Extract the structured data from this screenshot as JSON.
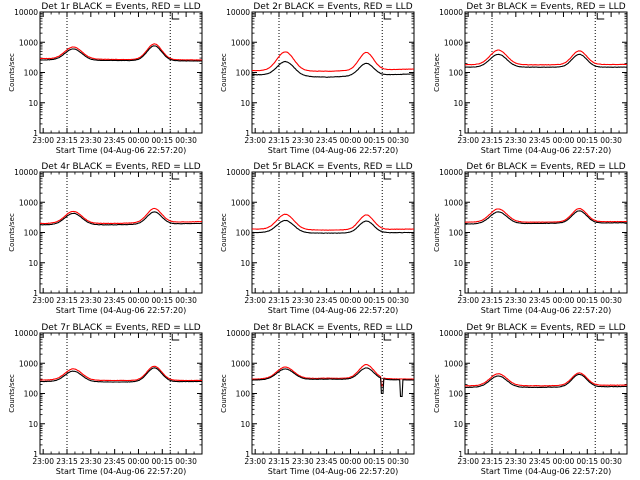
{
  "chart_data": [
    {
      "type": "line",
      "title": "Det 1r BLACK = Events, RED = LLD",
      "series": [
        {
          "name": "BLACK = Events",
          "color": "#000000",
          "peaks": [
            600,
            760
          ],
          "base": [
            260,
            250,
            240
          ]
        },
        {
          "name": "RED = LLD",
          "color": "#ff0000",
          "peaks": [
            700,
            880
          ],
          "base": [
            290,
            270,
            260
          ]
        }
      ],
      "glitch": null
    },
    {
      "type": "line",
      "title": "Det 2r BLACK = Events, RED = LLD",
      "series": [
        {
          "name": "BLACK = Events",
          "color": "#000000",
          "peaks": [
            230,
            200
          ],
          "base": [
            85,
            70,
            90
          ]
        },
        {
          "name": "RED = LLD",
          "color": "#ff0000",
          "peaks": [
            480,
            460
          ],
          "base": [
            115,
            110,
            130
          ]
        }
      ],
      "glitch": null
    },
    {
      "type": "line",
      "title": "Det 3r BLACK = Events, RED = LLD",
      "series": [
        {
          "name": "BLACK = Events",
          "color": "#000000",
          "peaks": [
            400,
            400
          ],
          "base": [
            150,
            150,
            150
          ]
        },
        {
          "name": "RED = LLD",
          "color": "#ff0000",
          "peaks": [
            550,
            520
          ],
          "base": [
            180,
            180,
            185
          ]
        }
      ],
      "glitch": null
    },
    {
      "type": "line",
      "title": "Det 4r BLACK = Events, RED = LLD",
      "series": [
        {
          "name": "BLACK = Events",
          "color": "#000000",
          "peaks": [
            430,
            480
          ],
          "base": [
            180,
            180,
            200
          ]
        },
        {
          "name": "RED = LLD",
          "color": "#ff0000",
          "peaks": [
            500,
            620
          ],
          "base": [
            200,
            200,
            230
          ]
        }
      ],
      "glitch": null
    },
    {
      "type": "line",
      "title": "Det 5r BLACK = Events, RED = LLD",
      "series": [
        {
          "name": "BLACK = Events",
          "color": "#000000",
          "peaks": [
            250,
            240
          ],
          "base": [
            100,
            95,
            100
          ]
        },
        {
          "name": "RED = LLD",
          "color": "#ff0000",
          "peaks": [
            400,
            380
          ],
          "base": [
            130,
            120,
            130
          ]
        }
      ],
      "glitch": null
    },
    {
      "type": "line",
      "title": "Det 6r BLACK = Events, RED = LLD",
      "series": [
        {
          "name": "BLACK = Events",
          "color": "#000000",
          "peaks": [
            480,
            520
          ],
          "base": [
            190,
            200,
            210
          ]
        },
        {
          "name": "RED = LLD",
          "color": "#ff0000",
          "peaks": [
            600,
            620
          ],
          "base": [
            220,
            220,
            230
          ]
        }
      ],
      "glitch": null
    },
    {
      "type": "line",
      "title": "Det 7r BLACK = Events, RED = LLD",
      "series": [
        {
          "name": "BLACK = Events",
          "color": "#000000",
          "peaks": [
            550,
            700
          ],
          "base": [
            250,
            240,
            250
          ]
        },
        {
          "name": "RED = LLD",
          "color": "#ff0000",
          "peaks": [
            650,
            800
          ],
          "base": [
            280,
            270,
            270
          ]
        }
      ],
      "glitch": null
    },
    {
      "type": "line",
      "title": "Det 8r BLACK = Events, RED = LLD",
      "series": [
        {
          "name": "BLACK = Events",
          "color": "#000000",
          "peaks": [
            650,
            700
          ],
          "base": [
            280,
            300,
            280
          ]
        },
        {
          "name": "RED = LLD",
          "color": "#ff0000",
          "peaks": [
            750,
            900
          ],
          "base": [
            300,
            320,
            300
          ]
        }
      ],
      "glitch": {
        "x": 80,
        "min": 100,
        "x2": 92,
        "min2": 80
      }
    },
    {
      "type": "line",
      "title": "Det 9r BLACK = Events, RED = LLD",
      "series": [
        {
          "name": "BLACK = Events",
          "color": "#000000",
          "peaks": [
            380,
            430
          ],
          "base": [
            160,
            160,
            170
          ]
        },
        {
          "name": "RED = LLD",
          "color": "#ff0000",
          "peaks": [
            450,
            480
          ],
          "base": [
            180,
            180,
            190
          ]
        }
      ],
      "glitch": null
    }
  ],
  "shared_axes": {
    "x_range_min": [
      -2,
      100
    ],
    "x_ticks": [
      0,
      15,
      30,
      45,
      60,
      75,
      90
    ],
    "x_tick_labels": [
      "23:00",
      "23:15",
      "23:30",
      "23:45",
      "00:00",
      "00:15",
      "00:30"
    ],
    "xlabel": "Start Time (04-Aug-06 22:57:20)",
    "ylabel": "Counts/sec",
    "y_scale": "log",
    "y_range": [
      1,
      10000
    ],
    "y_ticks": [
      1,
      10,
      100,
      1000,
      10000
    ],
    "y_tick_labels": [
      "1",
      "10",
      "100",
      "1000",
      "10000"
    ],
    "vlines_min": [
      15,
      80
    ],
    "peak_times_min": [
      19,
      70
    ]
  }
}
